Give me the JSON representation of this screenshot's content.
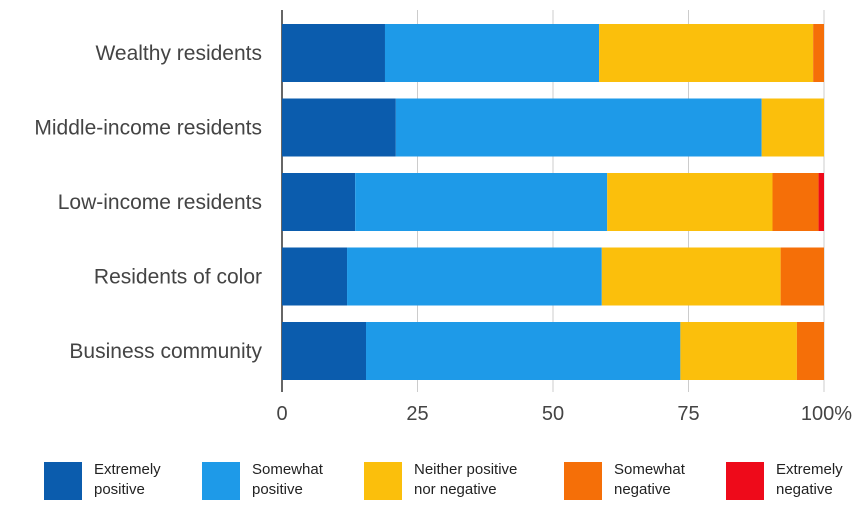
{
  "chart_data": {
    "type": "bar",
    "orientation": "horizontal",
    "stacked": true,
    "categories": [
      "Wealthy residents",
      "Middle-income residents",
      "Low-income residents",
      "Residents of color",
      "Business community"
    ],
    "series": [
      {
        "name": "Extremely positive",
        "color": "#0b5cad",
        "values": [
          19,
          21,
          13.5,
          12,
          15.5
        ]
      },
      {
        "name": "Somewhat positive",
        "color": "#1e9ae8",
        "values": [
          39.5,
          67.5,
          46.5,
          47,
          58
        ]
      },
      {
        "name": "Neither positive nor negative",
        "color": "#fbbf0c",
        "values": [
          39.5,
          11.5,
          30.5,
          33,
          21.5
        ]
      },
      {
        "name": "Somewhat negative",
        "color": "#f56f08",
        "values": [
          2,
          0,
          8.5,
          8,
          5
        ]
      },
      {
        "name": "Extremely negative",
        "color": "#ee0a1a",
        "values": [
          0,
          0,
          1,
          0,
          0
        ]
      }
    ],
    "xlim": [
      0,
      100
    ],
    "xticks": [
      "0",
      "25",
      "50",
      "75",
      "100%"
    ],
    "grid": true,
    "legend_position": "bottom"
  },
  "legend": [
    {
      "line1": "Extremely",
      "line2": "positive"
    },
    {
      "line1": "Somewhat",
      "line2": "positive"
    },
    {
      "line1": "Neither positive",
      "line2": "nor negative"
    },
    {
      "line1": "Somewhat",
      "line2": "negative"
    },
    {
      "line1": "Extremely",
      "line2": "negative"
    }
  ]
}
